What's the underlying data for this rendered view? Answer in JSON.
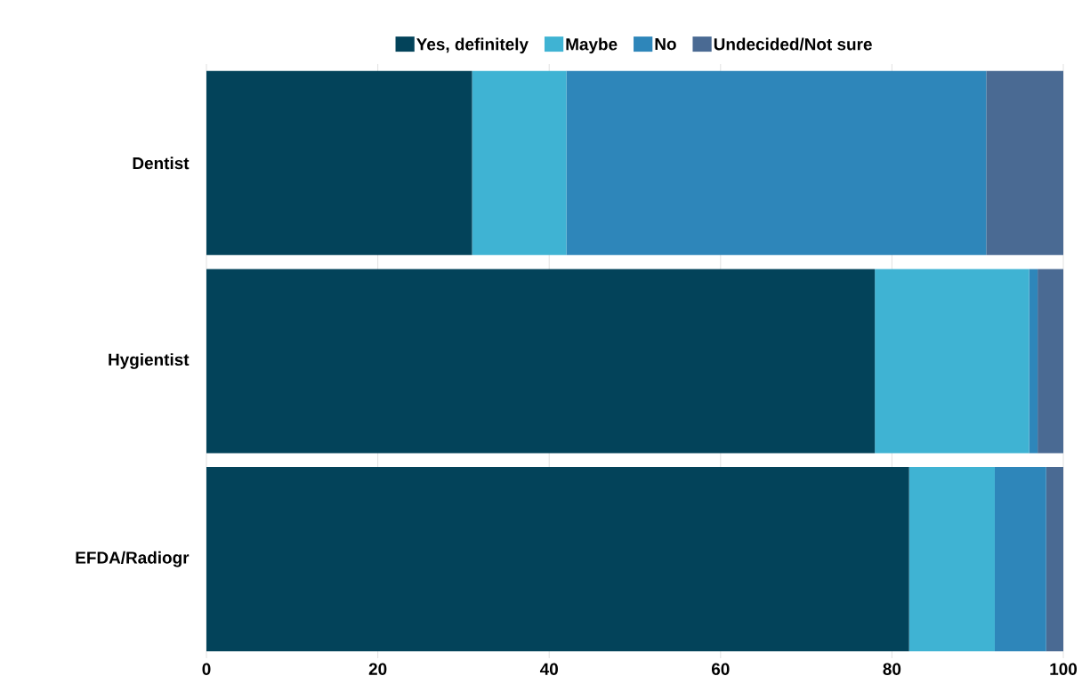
{
  "chart_data": {
    "type": "bar",
    "orientation": "horizontal",
    "stacked": true,
    "categories": [
      "Dentist",
      "Hygientist",
      "EFDA/Radiogr"
    ],
    "series": [
      {
        "name": "Yes, definitely",
        "color": "#03435a",
        "values": [
          31,
          78,
          82
        ]
      },
      {
        "name": "Maybe",
        "color": "#3fb3d3",
        "values": [
          11,
          18,
          10
        ]
      },
      {
        "name": "No",
        "color": "#2e86ba",
        "values": [
          49,
          1,
          6
        ]
      },
      {
        "name": "Undecided/Not sure",
        "color": "#4a6a93",
        "values": [
          9,
          3,
          2
        ]
      }
    ],
    "xlim": [
      0,
      100
    ],
    "xticks": [
      0,
      20,
      40,
      60,
      80,
      100
    ],
    "grid": "x",
    "legend": "top"
  }
}
